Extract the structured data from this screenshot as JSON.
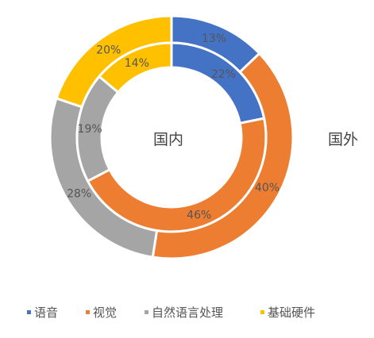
{
  "chart_data": {
    "type": "donut",
    "categories": [
      "语音",
      "视觉",
      "自然语言处理",
      "基础硬件"
    ],
    "colors": [
      "#4472C4",
      "#ED7D31",
      "#A5A5A5",
      "#FFC000"
    ],
    "series": [
      {
        "name": "国外",
        "values": [
          13,
          40,
          28,
          20
        ],
        "labels": [
          "13%",
          "40%",
          "28%",
          "20%"
        ]
      },
      {
        "name": "国内",
        "values": [
          22,
          46,
          19,
          14
        ],
        "labels": [
          "22%",
          "46%",
          "19%",
          "14%"
        ]
      }
    ],
    "center_label": "国内",
    "outer_label": "国外",
    "legend": {
      "position": "bottom",
      "items": [
        "语音",
        "视觉",
        "自然语言处理",
        "基础硬件"
      ]
    }
  }
}
